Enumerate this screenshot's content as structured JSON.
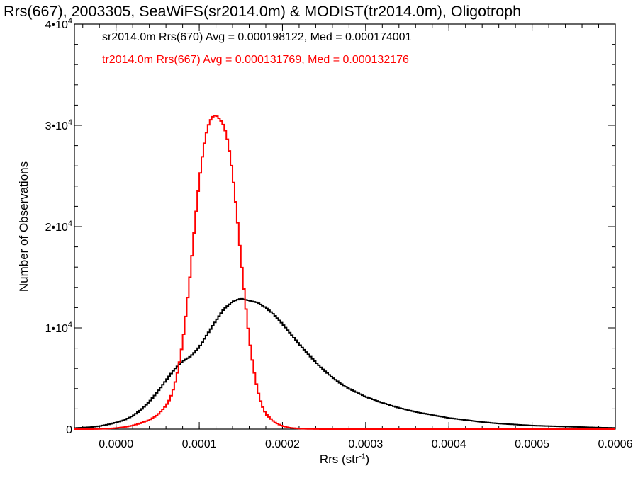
{
  "title": "Rrs(667), 2003305, SeaWiFS(sr2014.0m) & MODIST(tr2014.0m), Oligotroph",
  "colors": {
    "sr": "#000000",
    "tr": "#ff0000"
  },
  "chart_data": {
    "type": "line",
    "title": "Rrs(667), 2003305, SeaWiFS(sr2014.0m) & MODIST(tr2014.0m), Oligotroph",
    "xlabel_base": "Rrs (str",
    "xlabel_sup": "-1",
    "xlabel_end": ")",
    "ylabel": "Number of Observations",
    "xlim": [
      -5e-05,
      0.0006
    ],
    "ylim": [
      0,
      40000
    ],
    "x_ticks": [
      {
        "v": 0.0,
        "label": "0.0000"
      },
      {
        "v": 0.0001,
        "label": "0.0001"
      },
      {
        "v": 0.0002,
        "label": "0.0002"
      },
      {
        "v": 0.0003,
        "label": "0.0003"
      },
      {
        "v": 0.0004,
        "label": "0.0004"
      },
      {
        "v": 0.0005,
        "label": "0.0005"
      },
      {
        "v": 0.0006,
        "label": "0.0006"
      }
    ],
    "y_ticks": [
      {
        "v": 0,
        "label": "0",
        "sup": ""
      },
      {
        "v": 10000,
        "label": "1•10",
        "sup": "4"
      },
      {
        "v": 20000,
        "label": "2•10",
        "sup": "4"
      },
      {
        "v": 30000,
        "label": "3•10",
        "sup": "4"
      },
      {
        "v": 40000,
        "label": "4•10",
        "sup": "4"
      }
    ],
    "grid": false,
    "legend_position": "top-left",
    "series": [
      {
        "name": "sr2014.0m Rrs(670) Avg = 0.000198122, Med = 0.000174001",
        "color": "#000000",
        "x": [
          -5e-05,
          -4e-05,
          -3e-05,
          -2e-05,
          -1e-05,
          0.0,
          1e-05,
          2e-05,
          3e-05,
          4e-05,
          5e-05,
          6e-05,
          7e-05,
          8e-05,
          9e-05,
          0.0001,
          0.00011,
          0.00012,
          0.00013,
          0.00014,
          0.00015,
          0.00016,
          0.00017,
          0.00018,
          0.00019,
          0.0002,
          0.00021,
          0.00022,
          0.00023,
          0.00024,
          0.00025,
          0.00026,
          0.00027,
          0.00028,
          0.0003,
          0.00032,
          0.00034,
          0.00036,
          0.00038,
          0.0004,
          0.00042,
          0.00044,
          0.00046,
          0.00048,
          0.0005,
          0.00052,
          0.00054,
          0.00056,
          0.00058,
          0.0006
        ],
        "y": [
          100,
          150,
          200,
          300,
          450,
          650,
          900,
          1300,
          1900,
          2700,
          3700,
          4800,
          5900,
          6700,
          7200,
          8100,
          9400,
          10700,
          11900,
          12600,
          12900,
          12700,
          12500,
          12000,
          11300,
          10400,
          9400,
          8400,
          7500,
          6600,
          5800,
          5100,
          4500,
          4000,
          3200,
          2600,
          2100,
          1700,
          1400,
          1100,
          900,
          700,
          550,
          450,
          350,
          300,
          250,
          200,
          150,
          120
        ]
      },
      {
        "name": "tr2014.0m Rrs(667) Avg = 0.000131769, Med = 0.000132176",
        "color": "#ff0000",
        "x": [
          -5e-05,
          -4e-05,
          -3e-05,
          -2e-05,
          -1e-05,
          0.0,
          1e-05,
          2e-05,
          3e-05,
          4e-05,
          5e-05,
          6e-05,
          6.5e-05,
          7e-05,
          7.5e-05,
          8e-05,
          8.5e-05,
          9e-05,
          9.5e-05,
          0.0001,
          0.000105,
          0.00011,
          0.000115,
          0.00012,
          0.000125,
          0.00013,
          0.000135,
          0.00014,
          0.000145,
          0.00015,
          0.000155,
          0.00016,
          0.000165,
          0.00017,
          0.000175,
          0.00018,
          0.00019,
          0.0002,
          0.00021,
          0.00022,
          0.00023,
          0.00025,
          0.00028,
          0.00032,
          0.0004,
          0.0005,
          0.0006
        ],
        "y": [
          0,
          0,
          0,
          20,
          50,
          100,
          200,
          350,
          600,
          900,
          1400,
          2300,
          3000,
          4200,
          6000,
          8500,
          12000,
          16000,
          20500,
          24500,
          27700,
          29800,
          30800,
          31000,
          30600,
          29900,
          28200,
          25300,
          21500,
          17000,
          12800,
          9000,
          6100,
          3900,
          2400,
          1500,
          700,
          300,
          120,
          50,
          20,
          0,
          0,
          0,
          0,
          0,
          0
        ]
      }
    ]
  }
}
